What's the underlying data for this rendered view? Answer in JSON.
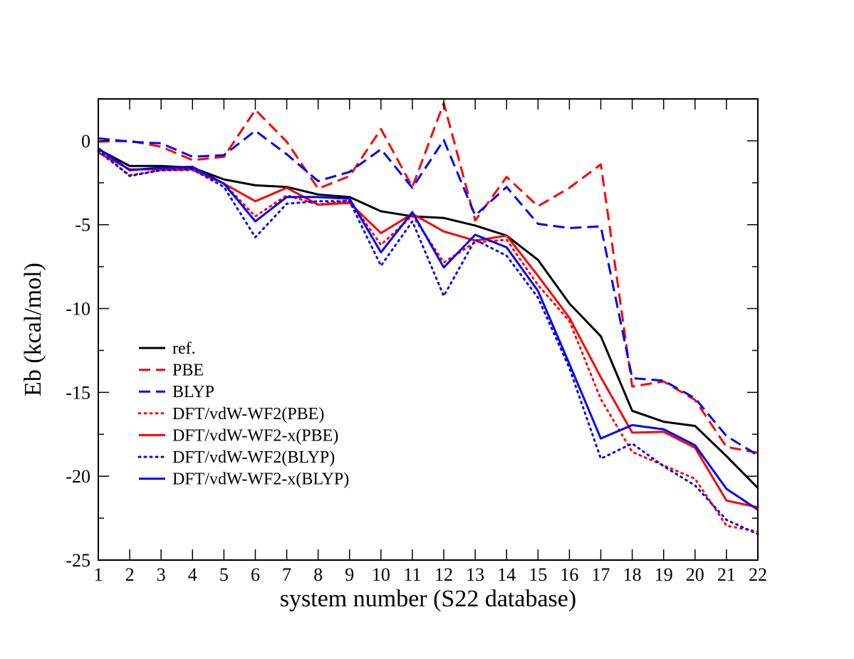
{
  "chart_data": {
    "type": "line",
    "title": "",
    "xlabel": "system number (S22 database)",
    "ylabel": "Eb (kcal/mol)",
    "xlim": [
      1,
      22
    ],
    "ylim": [
      -25,
      2.5
    ],
    "x": [
      1,
      2,
      3,
      4,
      5,
      6,
      7,
      8,
      9,
      10,
      11,
      12,
      13,
      14,
      15,
      16,
      17,
      18,
      19,
      20,
      21,
      22
    ],
    "x_tick_labels": [
      "1",
      "2",
      "3",
      "4",
      "5",
      "6",
      "7",
      "8",
      "9",
      "10",
      "11",
      "12",
      "13",
      "14",
      "15",
      "16",
      "17",
      "18",
      "19",
      "20",
      "21",
      "22"
    ],
    "y_ticks": [
      0,
      -5,
      -10,
      -15,
      -20,
      -25
    ],
    "y_tick_labels": [
      "0",
      "-5",
      "-10",
      "-15",
      "-20",
      "-25"
    ],
    "grid": false,
    "legend_position": "lower-left",
    "series": [
      {
        "name": "ref.",
        "color": "#000000",
        "dash": "solid",
        "values": [
          -0.5,
          -1.5,
          -1.5,
          -1.6,
          -2.3,
          -2.65,
          -2.75,
          -3.2,
          -3.35,
          -4.2,
          -4.5,
          -4.6,
          -5.05,
          -5.65,
          -7.1,
          -9.7,
          -11.65,
          -16.1,
          -16.75,
          -17.0,
          -18.8,
          -20.7
        ]
      },
      {
        "name": "PBE",
        "color": "#ff0000",
        "dash": "dashed",
        "values": [
          -0.05,
          0.0,
          -0.35,
          -1.15,
          -0.95,
          1.85,
          -0.05,
          -2.85,
          -2.1,
          0.7,
          -2.75,
          2.25,
          -4.75,
          -2.15,
          -3.9,
          -2.8,
          -1.4,
          -14.65,
          -14.35,
          -15.45,
          -18.25,
          -18.6
        ]
      },
      {
        "name": "BLYP",
        "color": "#0000ff",
        "dash": "dashed",
        "values": [
          0.15,
          -0.05,
          -0.15,
          -0.95,
          -0.85,
          0.6,
          -0.8,
          -2.4,
          -1.85,
          -0.5,
          -2.8,
          0.05,
          -4.45,
          -2.75,
          -4.95,
          -5.2,
          -5.1,
          -14.15,
          -14.3,
          -15.35,
          -17.6,
          -18.75
        ]
      },
      {
        "name": "DFT/vdW-WF2(PBE)",
        "color": "#ff0000",
        "dash": "dotted",
        "values": [
          -0.65,
          -2.05,
          -1.75,
          -1.75,
          -2.55,
          -4.5,
          -3.25,
          -3.8,
          -3.55,
          -6.2,
          -4.45,
          -7.25,
          -6.05,
          -5.9,
          -8.6,
          -10.75,
          -15.4,
          -18.55,
          -19.35,
          -20.15,
          -22.95,
          -23.3
        ]
      },
      {
        "name": "DFT/vdW-WF2-x(PBE)",
        "color": "#ff0000",
        "dash": "solid",
        "values": [
          -0.7,
          -1.7,
          -1.7,
          -1.7,
          -2.55,
          -3.6,
          -2.8,
          -3.8,
          -3.7,
          -5.5,
          -4.35,
          -5.4,
          -5.95,
          -5.65,
          -8.05,
          -10.55,
          -14.1,
          -17.4,
          -17.35,
          -18.3,
          -21.45,
          -21.85
        ]
      },
      {
        "name": "DFT/vdW-WF2(BLYP)",
        "color": "#0000ff",
        "dash": "dotted",
        "values": [
          -0.55,
          -2.1,
          -1.75,
          -1.7,
          -2.75,
          -5.75,
          -3.75,
          -3.6,
          -3.6,
          -7.45,
          -4.8,
          -9.25,
          -5.9,
          -6.85,
          -9.35,
          -13.55,
          -18.95,
          -18.05,
          -19.4,
          -20.55,
          -22.6,
          -23.45
        ]
      },
      {
        "name": "DFT/vdW-WF2-x(BLYP)",
        "color": "#0000ff",
        "dash": "solid",
        "values": [
          -0.45,
          -1.75,
          -1.6,
          -1.55,
          -2.55,
          -4.8,
          -3.35,
          -3.35,
          -3.45,
          -6.65,
          -4.25,
          -7.55,
          -5.6,
          -6.35,
          -8.95,
          -13.3,
          -17.75,
          -16.95,
          -17.2,
          -18.15,
          -20.75,
          -22.0
        ]
      }
    ]
  }
}
